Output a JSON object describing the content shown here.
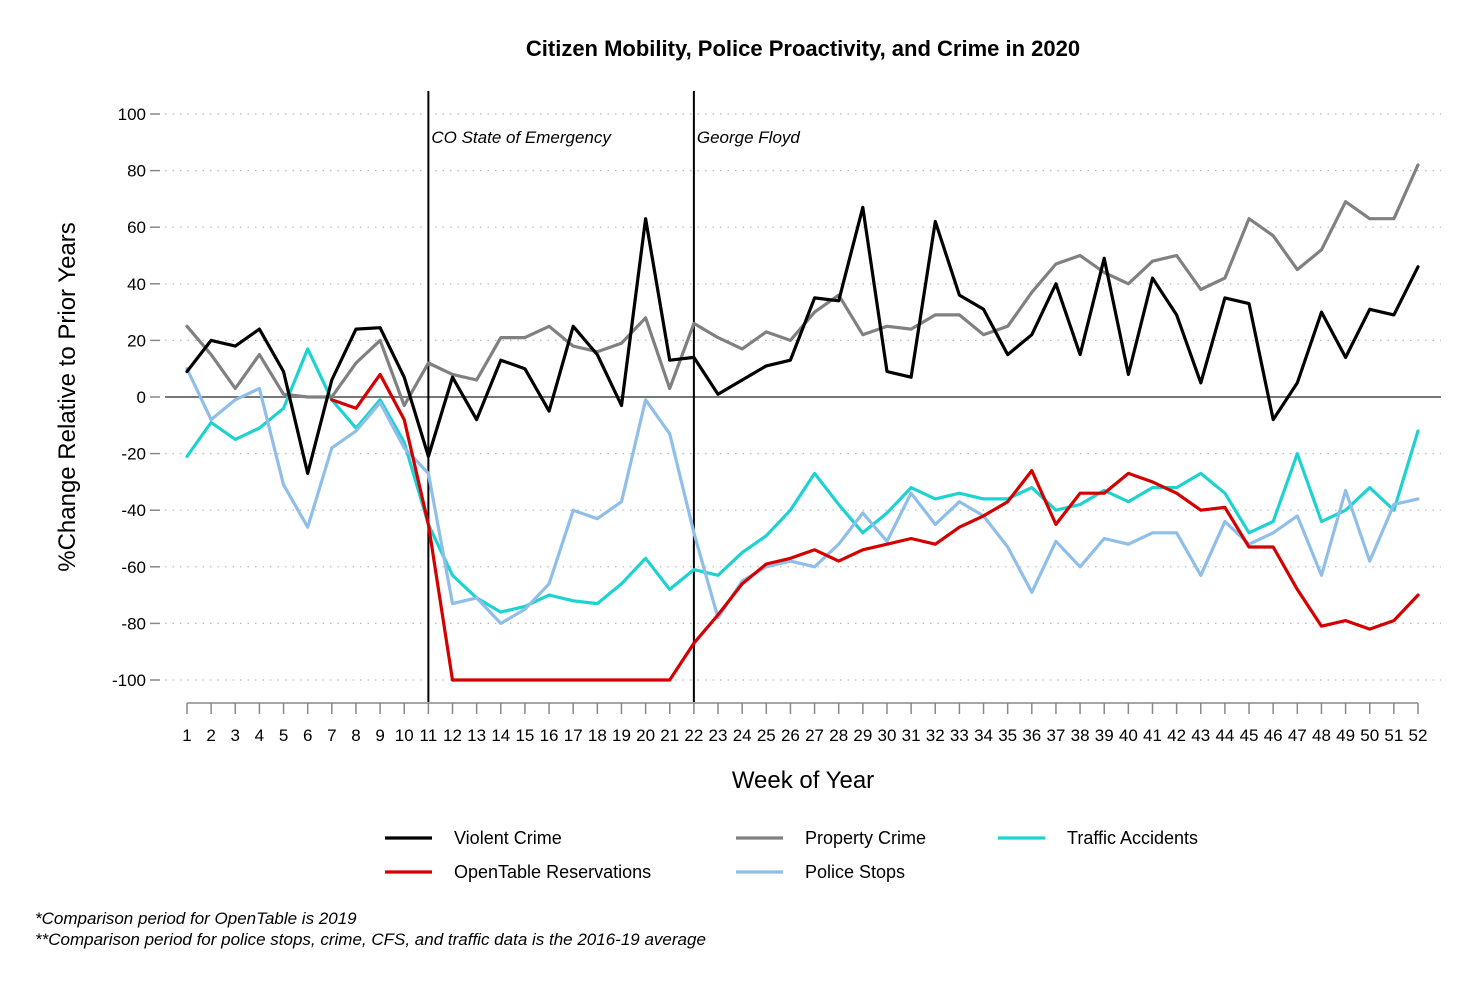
{
  "chart_data": {
    "type": "line",
    "title": "Citizen Mobility, Police Proactivity, and Crime in 2020",
    "xlabel": "Week of Year",
    "ylabel": "%Change Relative to Prior Years",
    "x": [
      1,
      2,
      3,
      4,
      5,
      6,
      7,
      8,
      9,
      10,
      11,
      12,
      13,
      14,
      15,
      16,
      17,
      18,
      19,
      20,
      21,
      22,
      23,
      24,
      25,
      26,
      27,
      28,
      29,
      30,
      31,
      32,
      33,
      34,
      35,
      36,
      37,
      38,
      39,
      40,
      41,
      42,
      43,
      44,
      45,
      46,
      47,
      48,
      49,
      50,
      51,
      52
    ],
    "xlim": [
      1,
      52
    ],
    "ylim": [
      -100,
      100
    ],
    "yticks": [
      -100,
      -80,
      -60,
      -40,
      -20,
      0,
      20,
      40,
      60,
      80,
      100
    ],
    "grid": "horizontal dotted",
    "legend_position": "bottom",
    "zero_line": 0,
    "events": [
      {
        "week": 11,
        "label": "CO State of Emergency"
      },
      {
        "week": 22,
        "label": "George Floyd"
      }
    ],
    "series": [
      {
        "name": "Violent Crime",
        "color": "#000000",
        "values": [
          9,
          20,
          18,
          24,
          9,
          -27,
          6,
          24,
          24.5,
          7,
          -21,
          7,
          -8,
          13,
          10,
          -5,
          25,
          15,
          -3,
          63,
          13,
          14,
          1,
          6,
          11,
          13,
          35,
          34,
          67,
          9,
          7,
          62,
          36,
          31,
          15,
          22,
          40,
          15,
          49,
          8,
          42,
          29,
          5,
          35,
          33,
          -8,
          5,
          30,
          14,
          31,
          29,
          46
        ]
      },
      {
        "name": "Property Crime",
        "color": "#808080",
        "values": [
          25,
          15,
          3,
          15,
          1,
          0,
          0,
          12,
          20,
          -3,
          12,
          8,
          6,
          21,
          21,
          25,
          18,
          16,
          19,
          28,
          3,
          26,
          21,
          17,
          23,
          20,
          30,
          36,
          22,
          25,
          24,
          29,
          29,
          22,
          25,
          37,
          47,
          50,
          44,
          40,
          48,
          50,
          38,
          42,
          63,
          57,
          45,
          52,
          69,
          63,
          63,
          82
        ]
      },
      {
        "name": "Traffic Accidents",
        "color": "#1ED2D2",
        "values": [
          -21,
          -9,
          -15,
          -11,
          -4,
          17,
          -1,
          -11,
          -1,
          -16,
          -45,
          -63,
          -71,
          -76,
          -74,
          -70,
          -72,
          -73,
          -66,
          -57,
          -68,
          -61,
          -63,
          -55,
          -49,
          -40,
          -27,
          -38,
          -48,
          -41,
          -32,
          -36,
          -34,
          -36,
          -36,
          -32,
          -40,
          -38,
          -33,
          -37,
          -32,
          -32,
          -27,
          -34,
          -48,
          -44,
          -20,
          -44,
          -40,
          -32,
          -40,
          -12
        ]
      },
      {
        "name": "OpenTable Reservations",
        "color": "#D40000",
        "values": [
          null,
          null,
          null,
          null,
          null,
          null,
          -1,
          -4,
          8,
          -8,
          -45,
          -100,
          -100,
          -100,
          -100,
          -100,
          -100,
          -100,
          -100,
          -100,
          -100,
          -87,
          -77,
          -66,
          -59,
          -57,
          -54,
          -58,
          -54,
          -52,
          -50,
          -52,
          -46,
          -42,
          -37,
          -26,
          -45,
          -34,
          -34,
          -27,
          -30,
          -34,
          -40,
          -39,
          -53,
          -53,
          -68,
          -81,
          -79,
          -82,
          -79,
          -70
        ]
      },
      {
        "name": "Police Stops",
        "color": "#8FBFE8",
        "values": [
          10,
          -8,
          -1,
          3,
          -31,
          -46,
          -18,
          -12,
          -2,
          -18,
          -27,
          -73,
          -71,
          -80,
          -75,
          -66,
          -40,
          -43,
          -37,
          -1,
          -13,
          -48,
          -78,
          -65,
          -60,
          -58,
          -60,
          -52,
          -41,
          -51,
          -34,
          -45,
          -37,
          -42,
          -53,
          -69,
          -51,
          -60,
          -50,
          -52,
          -48,
          -48,
          -63,
          -44,
          -52,
          -48,
          -42,
          -63,
          -33,
          -58,
          -38,
          -36
        ]
      }
    ],
    "legend_order": [
      "Violent Crime",
      "Property Crime",
      "Traffic Accidents",
      "OpenTable Reservations",
      "Police Stops"
    ]
  },
  "footnotes": [
    "*Comparison period for OpenTable is 2019",
    "**Comparison period for police stops, crime, CFS, and traffic data is the 2016-19 average"
  ]
}
